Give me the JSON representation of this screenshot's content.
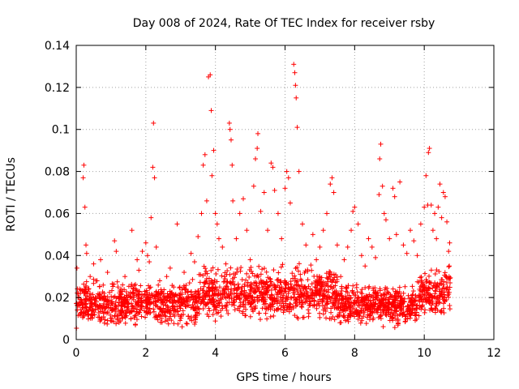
{
  "chart_data": {
    "type": "scatter",
    "title": "Day 008 of 2024, Rate Of TEC Index for receiver rsby",
    "xlabel": "GPS time / hours",
    "ylabel": "ROTI / TECUs",
    "xlim": [
      0,
      12
    ],
    "ylim": [
      0,
      0.14
    ],
    "xticks": [
      0,
      2,
      4,
      6,
      8,
      10,
      12
    ],
    "xtick_labels": [
      "0",
      "2",
      "4",
      "6",
      "8",
      "10",
      "12"
    ],
    "yticks": [
      0,
      0.02,
      0.04,
      0.06,
      0.08,
      0.1,
      0.12,
      0.14
    ],
    "ytick_labels": [
      "0",
      "0.02",
      "0.04",
      "0.06",
      "0.08",
      "0.1",
      "0.12",
      "0.14"
    ],
    "grid": true,
    "marker": "+",
    "color": "#ff0000",
    "series": [
      {
        "name": "ROTI",
        "points": [
          [
            0.02,
            0.034
          ],
          [
            0.05,
            0.02
          ],
          [
            0.08,
            0.016
          ],
          [
            0.12,
            0.022
          ],
          [
            0.15,
            0.018
          ],
          [
            0.2,
            0.077
          ],
          [
            0.22,
            0.083
          ],
          [
            0.25,
            0.063
          ],
          [
            0.28,
            0.045
          ],
          [
            0.3,
            0.041
          ],
          [
            0.35,
            0.024
          ],
          [
            0.4,
            0.03
          ],
          [
            0.45,
            0.014
          ],
          [
            0.5,
            0.036
          ],
          [
            0.55,
            0.02
          ],
          [
            0.6,
            0.028
          ],
          [
            0.7,
            0.038
          ],
          [
            0.8,
            0.022
          ],
          [
            0.9,
            0.032
          ],
          [
            1.0,
            0.018
          ],
          [
            1.1,
            0.047
          ],
          [
            1.15,
            0.042
          ],
          [
            1.2,
            0.025
          ],
          [
            1.3,
            0.019
          ],
          [
            1.4,
            0.03
          ],
          [
            1.5,
            0.017
          ],
          [
            1.6,
            0.052
          ],
          [
            1.65,
            0.024
          ],
          [
            1.75,
            0.038
          ],
          [
            1.8,
            0.033
          ],
          [
            1.9,
            0.042
          ],
          [
            2.0,
            0.046
          ],
          [
            2.05,
            0.04
          ],
          [
            2.1,
            0.037
          ],
          [
            2.15,
            0.058
          ],
          [
            2.2,
            0.082
          ],
          [
            2.22,
            0.103
          ],
          [
            2.25,
            0.077
          ],
          [
            2.3,
            0.044
          ],
          [
            2.4,
            0.028
          ],
          [
            2.5,
            0.022
          ],
          [
            2.6,
            0.03
          ],
          [
            2.7,
            0.034
          ],
          [
            2.8,
            0.025
          ],
          [
            2.9,
            0.055
          ],
          [
            3.0,
            0.02
          ],
          [
            3.1,
            0.032
          ],
          [
            3.2,
            0.018
          ],
          [
            3.3,
            0.041
          ],
          [
            3.4,
            0.037
          ],
          [
            3.5,
            0.049
          ],
          [
            3.6,
            0.06
          ],
          [
            3.65,
            0.083
          ],
          [
            3.7,
            0.088
          ],
          [
            3.75,
            0.066
          ],
          [
            3.8,
            0.125
          ],
          [
            3.85,
            0.126
          ],
          [
            3.88,
            0.109
          ],
          [
            3.9,
            0.078
          ],
          [
            3.95,
            0.09
          ],
          [
            4.0,
            0.06
          ],
          [
            4.05,
            0.055
          ],
          [
            4.1,
            0.048
          ],
          [
            4.2,
            0.044
          ],
          [
            4.3,
            0.036
          ],
          [
            4.4,
            0.103
          ],
          [
            4.42,
            0.1
          ],
          [
            4.45,
            0.095
          ],
          [
            4.48,
            0.083
          ],
          [
            4.5,
            0.066
          ],
          [
            4.6,
            0.048
          ],
          [
            4.7,
            0.06
          ],
          [
            4.8,
            0.067
          ],
          [
            4.9,
            0.052
          ],
          [
            5.0,
            0.038
          ],
          [
            5.1,
            0.073
          ],
          [
            5.15,
            0.086
          ],
          [
            5.2,
            0.091
          ],
          [
            5.22,
            0.098
          ],
          [
            5.3,
            0.061
          ],
          [
            5.4,
            0.07
          ],
          [
            5.5,
            0.052
          ],
          [
            5.6,
            0.084
          ],
          [
            5.65,
            0.082
          ],
          [
            5.7,
            0.071
          ],
          [
            5.8,
            0.06
          ],
          [
            5.9,
            0.048
          ],
          [
            6.0,
            0.072
          ],
          [
            6.05,
            0.08
          ],
          [
            6.1,
            0.077
          ],
          [
            6.15,
            0.065
          ],
          [
            6.25,
            0.131
          ],
          [
            6.28,
            0.127
          ],
          [
            6.3,
            0.121
          ],
          [
            6.32,
            0.115
          ],
          [
            6.35,
            0.101
          ],
          [
            6.4,
            0.08
          ],
          [
            6.5,
            0.055
          ],
          [
            6.6,
            0.045
          ],
          [
            6.8,
            0.05
          ],
          [
            6.9,
            0.038
          ],
          [
            7.0,
            0.044
          ],
          [
            7.1,
            0.052
          ],
          [
            7.2,
            0.06
          ],
          [
            7.3,
            0.074
          ],
          [
            7.35,
            0.077
          ],
          [
            7.4,
            0.07
          ],
          [
            7.5,
            0.045
          ],
          [
            7.6,
            0.03
          ],
          [
            7.7,
            0.038
          ],
          [
            7.8,
            0.044
          ],
          [
            7.9,
            0.052
          ],
          [
            7.95,
            0.061
          ],
          [
            8.0,
            0.063
          ],
          [
            8.1,
            0.055
          ],
          [
            8.2,
            0.04
          ],
          [
            8.3,
            0.035
          ],
          [
            8.4,
            0.048
          ],
          [
            8.5,
            0.044
          ],
          [
            8.6,
            0.039
          ],
          [
            8.7,
            0.069
          ],
          [
            8.72,
            0.086
          ],
          [
            8.75,
            0.093
          ],
          [
            8.8,
            0.073
          ],
          [
            8.85,
            0.06
          ],
          [
            8.9,
            0.057
          ],
          [
            9.0,
            0.048
          ],
          [
            9.1,
            0.072
          ],
          [
            9.15,
            0.068
          ],
          [
            9.2,
            0.05
          ],
          [
            9.3,
            0.075
          ],
          [
            9.4,
            0.045
          ],
          [
            9.5,
            0.041
          ],
          [
            9.6,
            0.052
          ],
          [
            9.7,
            0.047
          ],
          [
            9.8,
            0.04
          ],
          [
            9.9,
            0.055
          ],
          [
            10.0,
            0.063
          ],
          [
            10.05,
            0.078
          ],
          [
            10.1,
            0.064
          ],
          [
            10.12,
            0.089
          ],
          [
            10.15,
            0.091
          ],
          [
            10.2,
            0.064
          ],
          [
            10.25,
            0.052
          ],
          [
            10.3,
            0.06
          ],
          [
            10.35,
            0.048
          ],
          [
            10.4,
            0.063
          ],
          [
            10.45,
            0.074
          ],
          [
            10.5,
            0.058
          ],
          [
            10.55,
            0.07
          ],
          [
            10.6,
            0.068
          ],
          [
            10.65,
            0.056
          ],
          [
            10.7,
            0.042
          ],
          [
            10.72,
            0.035
          ],
          [
            10.73,
            0.046
          ]
        ]
      }
    ],
    "baseline_band": {
      "x_range": [
        0,
        10.75
      ],
      "y_range": [
        0.004,
        0.03
      ],
      "count": 2200
    }
  }
}
